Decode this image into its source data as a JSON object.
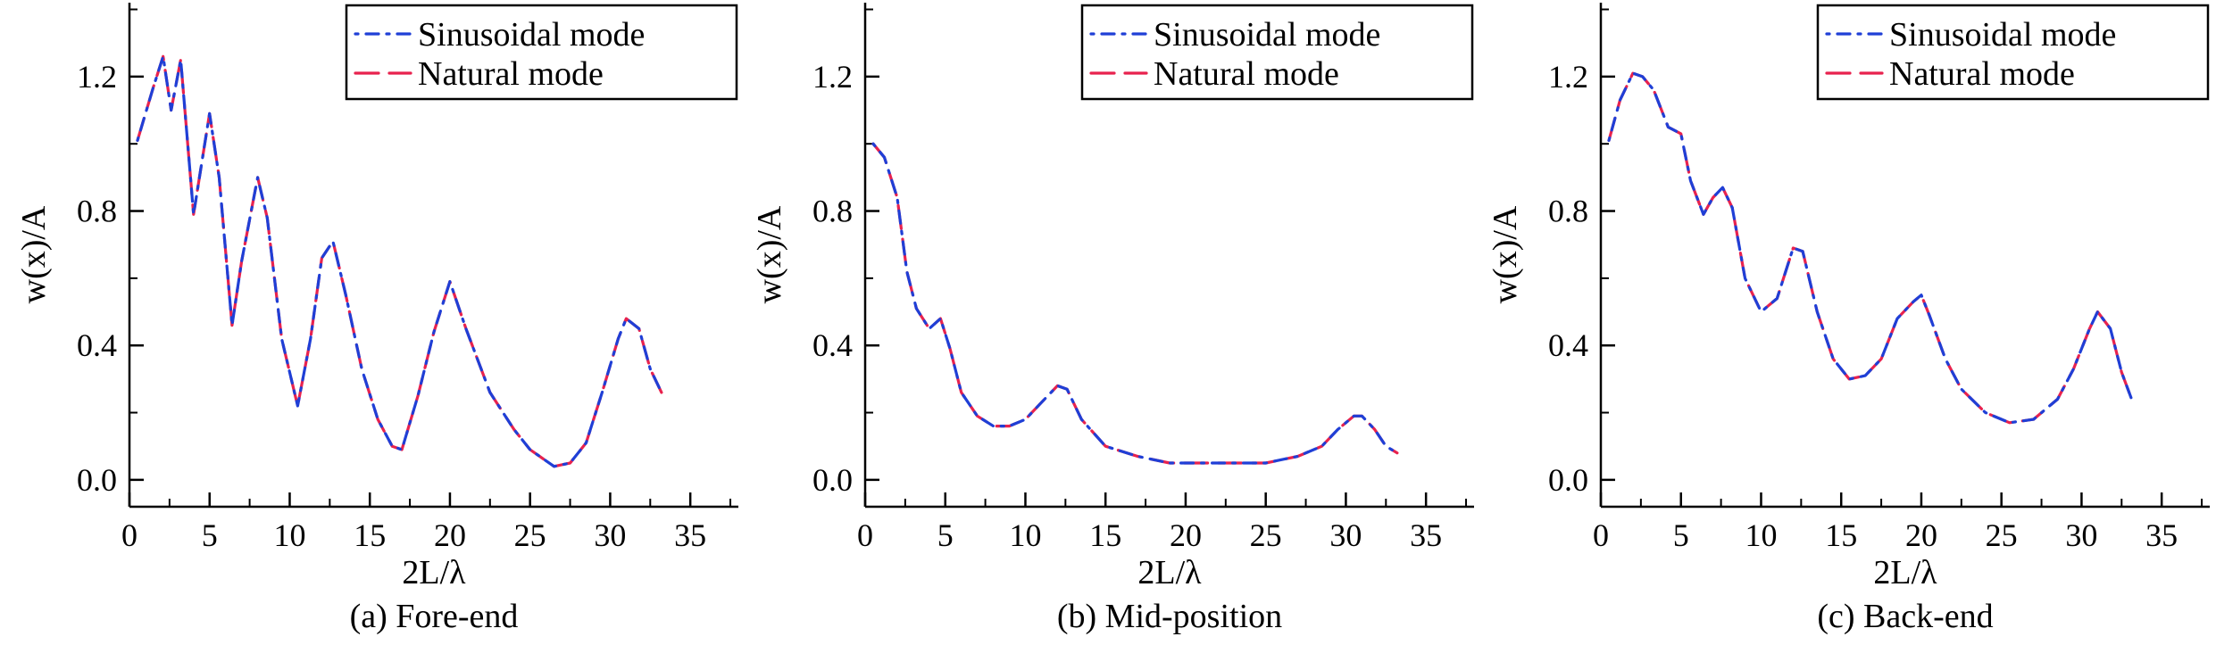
{
  "chart_data": [
    {
      "type": "line",
      "caption": "(a) Fore-end",
      "xlabel": "2L/λ",
      "ylabel": "w(x)/A",
      "xlim": [
        0,
        38
      ],
      "ylim": [
        -0.08,
        1.42
      ],
      "xticks": [
        0,
        5,
        10,
        15,
        20,
        25,
        30,
        35
      ],
      "yticks": [
        "0.0",
        "0.4",
        "0.8",
        "1.2"
      ],
      "legend_position": "top-right",
      "series": [
        {
          "name": "Sinusoidal mode",
          "style": "dash-dot",
          "color": "#1f3fd6",
          "x": [
            0.5,
            1.5,
            2.1,
            2.6,
            3.2,
            4.0,
            5.0,
            5.6,
            6.4,
            7.0,
            8.0,
            8.6,
            9.5,
            10.5,
            11.3,
            12.0,
            12.7,
            13.5,
            14.5,
            15.5,
            16.4,
            17.0,
            18.0,
            19.0,
            20.0,
            21.0,
            22.5,
            24.0,
            25.0,
            26.5,
            27.5,
            28.5,
            29.5,
            30.5,
            31.0,
            31.8,
            32.5,
            33.2
          ],
          "y": [
            1.01,
            1.17,
            1.26,
            1.1,
            1.25,
            0.79,
            1.09,
            0.9,
            0.46,
            0.65,
            0.9,
            0.78,
            0.42,
            0.22,
            0.42,
            0.66,
            0.71,
            0.55,
            0.33,
            0.18,
            0.1,
            0.09,
            0.25,
            0.44,
            0.59,
            0.45,
            0.26,
            0.15,
            0.09,
            0.04,
            0.05,
            0.11,
            0.26,
            0.42,
            0.48,
            0.45,
            0.33,
            0.26
          ]
        },
        {
          "name": "Natural mode",
          "style": "dashed",
          "color": "#e8224e",
          "x": [
            0.5,
            1.5,
            2.1,
            2.6,
            3.2,
            4.0,
            5.0,
            5.6,
            6.4,
            7.0,
            8.0,
            8.6,
            9.5,
            10.5,
            11.3,
            12.0,
            12.7,
            13.5,
            14.5,
            15.5,
            16.4,
            17.0,
            18.0,
            19.0,
            20.0,
            21.0,
            22.5,
            24.0,
            25.0,
            26.5,
            27.5,
            28.5,
            29.5,
            30.5,
            31.0,
            31.8,
            32.5,
            33.2
          ],
          "y": [
            1.01,
            1.17,
            1.26,
            1.1,
            1.25,
            0.79,
            1.09,
            0.9,
            0.46,
            0.65,
            0.9,
            0.78,
            0.42,
            0.22,
            0.42,
            0.66,
            0.71,
            0.55,
            0.33,
            0.18,
            0.1,
            0.09,
            0.25,
            0.44,
            0.59,
            0.45,
            0.26,
            0.15,
            0.09,
            0.04,
            0.05,
            0.11,
            0.26,
            0.42,
            0.48,
            0.45,
            0.33,
            0.26
          ]
        }
      ]
    },
    {
      "type": "line",
      "caption": "(b) Mid-position",
      "xlabel": "2L/λ",
      "ylabel": "w(x)/A",
      "xlim": [
        0,
        38
      ],
      "ylim": [
        -0.08,
        1.42
      ],
      "xticks": [
        0,
        5,
        10,
        15,
        20,
        25,
        30,
        35
      ],
      "yticks": [
        "0.0",
        "0.4",
        "0.8",
        "1.2"
      ],
      "legend_position": "top-right",
      "series": [
        {
          "name": "Sinusoidal mode",
          "style": "dash-dot",
          "color": "#1f3fd6",
          "x": [
            0.5,
            1.2,
            2.0,
            2.6,
            3.2,
            4.0,
            4.7,
            5.3,
            6.0,
            7.0,
            8.0,
            9.0,
            10.0,
            11.0,
            12.0,
            12.6,
            13.5,
            15.0,
            17.0,
            19.0,
            21.0,
            23.0,
            25.0,
            27.0,
            28.5,
            29.5,
            30.5,
            31.0,
            31.8,
            32.5,
            33.2
          ],
          "y": [
            1.0,
            0.96,
            0.84,
            0.62,
            0.51,
            0.45,
            0.48,
            0.39,
            0.26,
            0.19,
            0.16,
            0.16,
            0.18,
            0.23,
            0.28,
            0.27,
            0.18,
            0.1,
            0.07,
            0.05,
            0.05,
            0.05,
            0.05,
            0.07,
            0.1,
            0.15,
            0.19,
            0.19,
            0.15,
            0.1,
            0.08
          ]
        },
        {
          "name": "Natural mode",
          "style": "dashed",
          "color": "#e8224e",
          "x": [
            0.5,
            1.2,
            2.0,
            2.6,
            3.2,
            4.0,
            4.7,
            5.3,
            6.0,
            7.0,
            8.0,
            9.0,
            10.0,
            11.0,
            12.0,
            12.6,
            13.5,
            15.0,
            17.0,
            19.0,
            21.0,
            23.0,
            25.0,
            27.0,
            28.5,
            29.5,
            30.5,
            31.0,
            31.8,
            32.5,
            33.2
          ],
          "y": [
            1.0,
            0.96,
            0.84,
            0.62,
            0.51,
            0.45,
            0.48,
            0.39,
            0.26,
            0.19,
            0.16,
            0.16,
            0.18,
            0.23,
            0.28,
            0.27,
            0.18,
            0.1,
            0.07,
            0.05,
            0.05,
            0.05,
            0.05,
            0.07,
            0.1,
            0.15,
            0.19,
            0.19,
            0.15,
            0.1,
            0.08
          ]
        }
      ]
    },
    {
      "type": "line",
      "caption": "(c) Back-end",
      "xlabel": "2L/λ",
      "ylabel": "w(x)/A",
      "xlim": [
        0,
        38
      ],
      "ylim": [
        -0.08,
        1.42
      ],
      "xticks": [
        0,
        5,
        10,
        15,
        20,
        25,
        30,
        35
      ],
      "yticks": [
        "0.0",
        "0.4",
        "0.8",
        "1.2"
      ],
      "legend_position": "top-right",
      "series": [
        {
          "name": "Sinusoidal mode",
          "style": "dash-dot",
          "color": "#1f3fd6",
          "x": [
            0.5,
            1.2,
            2.0,
            2.6,
            3.3,
            4.2,
            5.0,
            5.6,
            6.4,
            7.0,
            7.6,
            8.2,
            9.0,
            10.0,
            11.0,
            12.0,
            12.6,
            13.5,
            14.5,
            15.5,
            16.5,
            17.5,
            18.5,
            19.5,
            20.0,
            20.5,
            21.5,
            22.5,
            24.0,
            25.5,
            27.0,
            28.5,
            29.5,
            30.5,
            31.0,
            31.8,
            32.5,
            33.2
          ],
          "y": [
            1.01,
            1.13,
            1.21,
            1.2,
            1.16,
            1.05,
            1.03,
            0.89,
            0.79,
            0.84,
            0.87,
            0.81,
            0.6,
            0.5,
            0.54,
            0.69,
            0.68,
            0.5,
            0.36,
            0.3,
            0.31,
            0.36,
            0.48,
            0.53,
            0.55,
            0.49,
            0.36,
            0.27,
            0.2,
            0.17,
            0.18,
            0.24,
            0.33,
            0.45,
            0.5,
            0.45,
            0.32,
            0.23
          ]
        },
        {
          "name": "Natural mode",
          "style": "dashed",
          "color": "#e8224e",
          "x": [
            0.5,
            1.2,
            2.0,
            2.6,
            3.3,
            4.2,
            5.0,
            5.6,
            6.4,
            7.0,
            7.6,
            8.2,
            9.0,
            10.0,
            11.0,
            12.0,
            12.6,
            13.5,
            14.5,
            15.5,
            16.5,
            17.5,
            18.5,
            19.5,
            20.0,
            20.5,
            21.5,
            22.5,
            24.0,
            25.5,
            27.0,
            28.5,
            29.5,
            30.5,
            31.0,
            31.8,
            32.5,
            33.2
          ],
          "y": [
            1.01,
            1.13,
            1.21,
            1.2,
            1.16,
            1.05,
            1.03,
            0.89,
            0.79,
            0.84,
            0.87,
            0.81,
            0.6,
            0.5,
            0.54,
            0.69,
            0.68,
            0.5,
            0.36,
            0.3,
            0.31,
            0.36,
            0.48,
            0.53,
            0.55,
            0.49,
            0.36,
            0.27,
            0.2,
            0.17,
            0.18,
            0.24,
            0.33,
            0.45,
            0.5,
            0.45,
            0.32,
            0.23
          ]
        }
      ]
    }
  ]
}
